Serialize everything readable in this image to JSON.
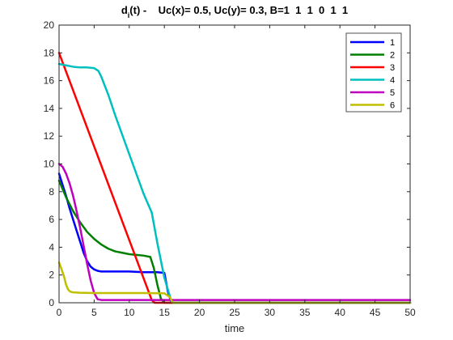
{
  "chart_data": {
    "type": "line",
    "title": {
      "pre": "d",
      "sub": "i",
      "post": "(t) -    Uc(x)= 0.5, Uc(y)= 0.3, B=1  1  1  0  1  1"
    },
    "xlabel": "time",
    "ylabel": "",
    "xlim": [
      0,
      50
    ],
    "ylim": [
      0,
      20
    ],
    "xticks": [
      0,
      5,
      10,
      15,
      20,
      25,
      30,
      35,
      40,
      45,
      50
    ],
    "yticks": [
      0,
      2,
      4,
      6,
      8,
      10,
      12,
      14,
      16,
      18,
      20
    ],
    "grid": false,
    "legend_position": "top-right",
    "series": [
      {
        "name": "1",
        "color": "#0000ff",
        "x": [
          0,
          0.5,
          1,
          1.5,
          2,
          2.5,
          3,
          3.5,
          4,
          4.5,
          5,
          5.5,
          6,
          7,
          8,
          10,
          12,
          14,
          15,
          15.5,
          16,
          50
        ],
        "y": [
          9.3,
          8.5,
          7.7,
          6.8,
          6.0,
          5.2,
          4.4,
          3.6,
          3.0,
          2.6,
          2.4,
          2.3,
          2.25,
          2.25,
          2.25,
          2.25,
          2.2,
          2.2,
          2.15,
          0.8,
          0,
          0
        ]
      },
      {
        "name": "2",
        "color": "#008000",
        "x": [
          0,
          1,
          2,
          3,
          4,
          5,
          6,
          7,
          8,
          9,
          10,
          11,
          12,
          13,
          13.5,
          14,
          14.5,
          15,
          50
        ],
        "y": [
          8.8,
          7.6,
          6.6,
          5.8,
          5.1,
          4.6,
          4.2,
          3.9,
          3.7,
          3.6,
          3.5,
          3.45,
          3.4,
          3.3,
          2.5,
          1.3,
          0.3,
          0,
          0
        ]
      },
      {
        "name": "3",
        "color": "#ff0000",
        "x": [
          0,
          13.2,
          13.6,
          50
        ],
        "y": [
          18.0,
          0.2,
          0,
          0
        ]
      },
      {
        "name": "4",
        "color": "#00bfbf",
        "x": [
          0,
          1,
          2,
          3,
          4,
          5,
          5.6,
          6,
          7,
          8,
          9,
          10,
          11,
          12,
          13.2,
          14,
          15,
          16,
          16.3,
          50
        ],
        "y": [
          17.2,
          17.1,
          17.0,
          16.95,
          16.95,
          16.9,
          16.7,
          16.3,
          15.0,
          13.5,
          12.1,
          10.7,
          9.3,
          7.9,
          6.5,
          4.3,
          1.8,
          0.1,
          0,
          0
        ]
      },
      {
        "name": "5",
        "color": "#bf00bf",
        "x": [
          0,
          0.5,
          1,
          1.5,
          2,
          2.5,
          3,
          3.5,
          4,
          4.5,
          5,
          5.5,
          6,
          7,
          8,
          10,
          12,
          14,
          16,
          50
        ],
        "y": [
          10.0,
          9.8,
          9.3,
          8.6,
          7.7,
          6.6,
          5.4,
          4.1,
          2.8,
          1.6,
          0.7,
          0.25,
          0.2,
          0.2,
          0.2,
          0.2,
          0.2,
          0.2,
          0.2,
          0.2
        ]
      },
      {
        "name": "6",
        "color": "#bfbf00",
        "x": [
          0,
          0.3,
          0.7,
          1,
          1.3,
          1.6,
          2,
          3,
          5,
          8,
          12,
          15,
          15.8,
          16.2,
          50
        ],
        "y": [
          2.9,
          2.5,
          1.9,
          1.3,
          0.95,
          0.8,
          0.75,
          0.72,
          0.7,
          0.7,
          0.7,
          0.68,
          0.4,
          0,
          0
        ]
      }
    ]
  }
}
